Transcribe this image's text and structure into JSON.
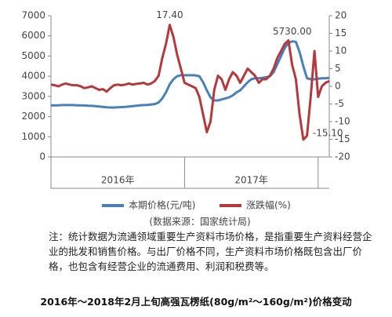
{
  "chart_data": {
    "type": "line",
    "title": "2016年～2018年2月上旬高强瓦楞纸(80g/m²～160g/m²)价格变动",
    "source": "(数据来源：国家统计局)",
    "note": "注：统计数据为流通领域重要生产资料市场价格，是指重要生产资料经营企业的批发和销售价格。与出厂价格不同，生产资料市场价格既包含出厂价格，也包含有经营企业的流通费用、利润和税费等。",
    "x_groups": [
      "2016年",
      "2017年"
    ],
    "categories": [
      null,
      null,
      null,
      null,
      null,
      null,
      null,
      null,
      null,
      null,
      null,
      null,
      null,
      null,
      null,
      null,
      null,
      null,
      null,
      null,
      null,
      null,
      null,
      null,
      null,
      null,
      null,
      null,
      null,
      null,
      null,
      null,
      null,
      null,
      null,
      null,
      null,
      null,
      null,
      null,
      null,
      null,
      null,
      null,
      null,
      null,
      null,
      null,
      null,
      null,
      null,
      null,
      null,
      null,
      null,
      null,
      null,
      null,
      null,
      null,
      null,
      null,
      null,
      null,
      null,
      null,
      null,
      null,
      null,
      null,
      null,
      null,
      null,
      null,
      null,
      null
    ],
    "ylim": [
      0,
      7000
    ],
    "yticks": [
      0,
      1000,
      2000,
      3000,
      4000,
      5000,
      6000,
      7000
    ],
    "y2lim": [
      -20,
      20
    ],
    "y2ticks": [
      -20,
      -15,
      -10,
      -5,
      0,
      5,
      10,
      15,
      20
    ],
    "grid": false,
    "legend": "bottom",
    "series": [
      {
        "name": "本期价格(元/吨)",
        "color": "#4a7fb9",
        "values": [
          2550,
          2560,
          2560,
          2570,
          2570,
          2570,
          2570,
          2560,
          2560,
          2550,
          2540,
          2530,
          2520,
          2500,
          2480,
          2460,
          2450,
          2450,
          2460,
          2470,
          2480,
          2500,
          2520,
          2540,
          2560,
          2570,
          2580,
          2600,
          2620,
          2700,
          2900,
          3200,
          3600,
          3850,
          4000,
          4050,
          4050,
          4050,
          4050,
          4040,
          4000,
          3700,
          3300,
          2950,
          2800,
          2800,
          2850,
          2900,
          2950,
          3050,
          3200,
          3300,
          3500,
          3700,
          3850,
          3900,
          3900,
          3920,
          3950,
          4000,
          4200,
          4600,
          5000,
          5400,
          5650,
          5730,
          5700,
          5200,
          4500,
          3900,
          3850,
          3850,
          3880,
          3900,
          3900,
          3920
        ],
        "value_labels": [
          null,
          null,
          null,
          null,
          null,
          null,
          null,
          null,
          null,
          null,
          null,
          null,
          null,
          null,
          null,
          null,
          null,
          null,
          null,
          null,
          null,
          null,
          null,
          null,
          null,
          null,
          null,
          null,
          null,
          null,
          null,
          null,
          null,
          null,
          null,
          null,
          null,
          null,
          null,
          null,
          null,
          null,
          null,
          null,
          null,
          null,
          null,
          null,
          null,
          null,
          null,
          null,
          null,
          null,
          null,
          null,
          null,
          null,
          null,
          null,
          null,
          null,
          null,
          null,
          null,
          "5730.00",
          null,
          null,
          null,
          null,
          null,
          null,
          null,
          null,
          null,
          null
        ]
      },
      {
        "name": "涨跌幅(%)",
        "color": "#b3393d",
        "axis": "y2",
        "values": [
          0.5,
          0.3,
          0,
          0.5,
          0.8,
          0.5,
          0.3,
          0.3,
          0,
          -0.5,
          -0.3,
          0,
          -0.5,
          -1,
          -0.8,
          -1.5,
          -0.5,
          0.3,
          0.5,
          0.3,
          0.5,
          0.8,
          0.5,
          0.7,
          0.8,
          1,
          0.5,
          0.8,
          1.5,
          3,
          8,
          12,
          17.4,
          14,
          9,
          5,
          1,
          0.5,
          0,
          -0.5,
          -3,
          -8,
          -13,
          -10,
          -1,
          3,
          2,
          -1,
          2,
          4,
          3,
          1,
          3,
          5,
          4,
          3,
          1,
          2,
          2,
          3,
          5,
          8,
          10,
          12,
          13,
          6,
          2,
          -8,
          -15.1,
          -14,
          -3,
          10,
          -3,
          0,
          1,
          1.5
        ],
        "value_labels": [
          null,
          null,
          null,
          null,
          null,
          null,
          null,
          null,
          null,
          null,
          null,
          null,
          null,
          null,
          null,
          null,
          null,
          null,
          null,
          null,
          null,
          null,
          null,
          null,
          null,
          null,
          null,
          null,
          null,
          null,
          null,
          null,
          "17.40",
          null,
          null,
          null,
          null,
          null,
          null,
          null,
          null,
          null,
          null,
          null,
          null,
          null,
          null,
          null,
          null,
          null,
          null,
          null,
          null,
          null,
          null,
          null,
          null,
          null,
          null,
          null,
          null,
          null,
          null,
          null,
          null,
          null,
          null,
          null,
          "-15.10",
          null,
          null,
          null,
          null,
          null,
          null,
          null
        ]
      }
    ]
  }
}
